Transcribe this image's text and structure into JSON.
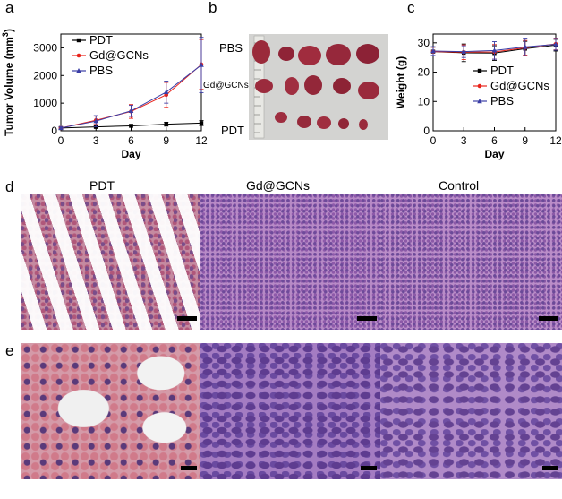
{
  "panels": {
    "a": "a",
    "b": "b",
    "c": "c",
    "d": "d",
    "e": "e"
  },
  "photo_labels": {
    "pbs": "PBS",
    "gd": "Gd@GCNs",
    "pdt": "PDT"
  },
  "histology_headers": {
    "pdt": "PDT",
    "gd": "Gd@GCNs",
    "control": "Control"
  },
  "chart_data": [
    {
      "type": "line",
      "panel": "a",
      "x": [
        0,
        3,
        6,
        9,
        12
      ],
      "xlabel": "Day",
      "ylabel": "Tumor Volume (mm³)",
      "ylabel_main": "Tumor Volume (mm",
      "ylabel_sup": "3",
      "ylabel_end": ")",
      "xlim": [
        0,
        12
      ],
      "ylim": [
        0,
        3500
      ],
      "xticks": [
        0,
        3,
        6,
        9,
        12
      ],
      "yticks": [
        0,
        1000,
        2000,
        3000
      ],
      "legend_position": "top-left",
      "series": [
        {
          "name": "PDT",
          "color": "#000000",
          "marker": "square",
          "values": [
            100,
            140,
            180,
            240,
            280
          ],
          "err": [
            40,
            40,
            50,
            70,
            90
          ]
        },
        {
          "name": "Gd@GCNs",
          "color": "#e8231b",
          "marker": "circle",
          "values": [
            100,
            380,
            700,
            1300,
            2400
          ],
          "err": [
            40,
            150,
            250,
            450,
            900
          ]
        },
        {
          "name": "PBS",
          "color": "#3b3ea6",
          "marker": "triangle",
          "values": [
            100,
            350,
            720,
            1400,
            2380
          ],
          "err": [
            40,
            200,
            200,
            400,
            1000
          ]
        }
      ]
    },
    {
      "type": "line",
      "panel": "c",
      "x": [
        0,
        3,
        6,
        9,
        12
      ],
      "xlabel": "Day",
      "ylabel": "Weight (g)",
      "xlim": [
        0,
        12
      ],
      "ylim": [
        0,
        33
      ],
      "xticks": [
        0,
        3,
        6,
        9,
        12
      ],
      "yticks": [
        0,
        10,
        20,
        30
      ],
      "legend_position": "bottom-right",
      "series": [
        {
          "name": "PDT",
          "color": "#000000",
          "marker": "square",
          "values": [
            27,
            26.6,
            26.5,
            28.0,
            29.2
          ],
          "err": [
            1.5,
            3,
            2.5,
            2.5,
            2
          ]
        },
        {
          "name": "Gd@GCNs",
          "color": "#e8231b",
          "marker": "circle",
          "values": [
            27,
            26.8,
            26.9,
            28.3,
            29.6
          ],
          "err": [
            1.5,
            2.5,
            2.5,
            2.5,
            2
          ]
        },
        {
          "name": "PBS",
          "color": "#3b3ea6",
          "marker": "triangle",
          "values": [
            27.2,
            27.0,
            27.4,
            28.6,
            29.5
          ],
          "err": [
            1.5,
            2,
            3,
            3,
            2
          ]
        }
      ]
    }
  ]
}
